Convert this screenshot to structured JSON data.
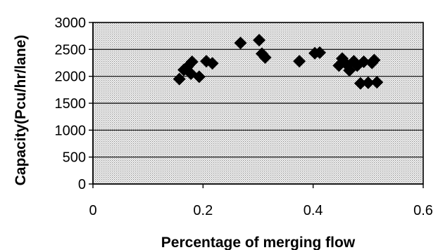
{
  "chart_data": {
    "type": "scatter",
    "title": "",
    "xlabel": "Percentage of merging flow",
    "ylabel": "Capacity(Pcu/hr/lane)",
    "xlim": [
      0,
      0.6
    ],
    "ylim": [
      0,
      3000
    ],
    "x_ticks": [
      0,
      0.2,
      0.4,
      0.6
    ],
    "x_tick_labels": [
      "0",
      "0.2",
      "0.4",
      "0.6"
    ],
    "y_ticks": [
      0,
      500,
      1000,
      1500,
      2000,
      2500,
      3000
    ],
    "y_tick_labels": [
      "0",
      "500",
      "1000",
      "1500",
      "2000",
      "2500",
      "3000"
    ],
    "grid": "horizontal",
    "plot_background": "dotted-gray",
    "marker": "diamond",
    "marker_color": "#000000",
    "series": [
      {
        "points": [
          [
            0.157,
            1950
          ],
          [
            0.165,
            2120
          ],
          [
            0.172,
            2180
          ],
          [
            0.178,
            2050
          ],
          [
            0.18,
            2270
          ],
          [
            0.193,
            1990
          ],
          [
            0.206,
            2280
          ],
          [
            0.217,
            2240
          ],
          [
            0.268,
            2620
          ],
          [
            0.302,
            2670
          ],
          [
            0.307,
            2420
          ],
          [
            0.313,
            2350
          ],
          [
            0.375,
            2280
          ],
          [
            0.403,
            2430
          ],
          [
            0.412,
            2440
          ],
          [
            0.447,
            2200
          ],
          [
            0.453,
            2330
          ],
          [
            0.462,
            2210
          ],
          [
            0.466,
            2110
          ],
          [
            0.474,
            2280
          ],
          [
            0.48,
            2200
          ],
          [
            0.486,
            1870
          ],
          [
            0.492,
            2270
          ],
          [
            0.5,
            1880
          ],
          [
            0.507,
            2250
          ],
          [
            0.511,
            2300
          ],
          [
            0.516,
            1890
          ]
        ]
      }
    ]
  }
}
